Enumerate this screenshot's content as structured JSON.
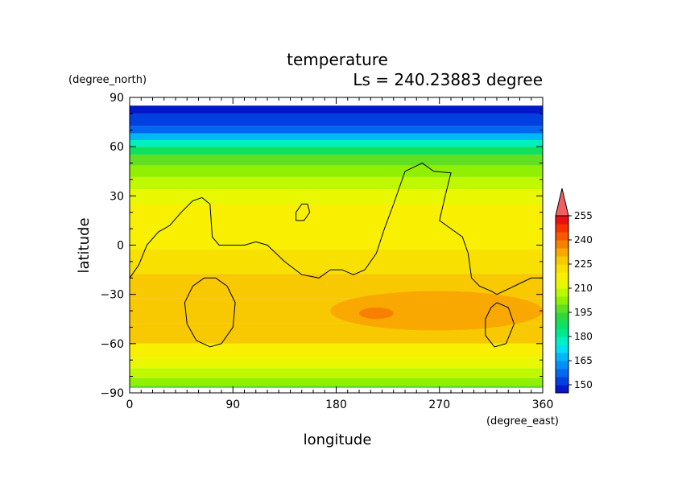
{
  "chart_data": {
    "type": "heatmap",
    "title": "temperature",
    "subtitle": "Ls = 240.23883 degree",
    "xlabel": "longitude",
    "ylabel": "latitude",
    "x_unit": "(degree_east)",
    "y_unit": "(degree_north)",
    "xlim": [
      0,
      360
    ],
    "ylim": [
      -90,
      90
    ],
    "data_lat_range": [
      -87,
      85
    ],
    "x_ticks": [
      "0",
      "90",
      "180",
      "270",
      "360"
    ],
    "y_ticks": [
      "90",
      "60",
      "30",
      "0",
      "−30",
      "−60",
      "−90"
    ],
    "x_tick_values": [
      0,
      90,
      180,
      270,
      360
    ],
    "y_tick_values": [
      90,
      60,
      30,
      0,
      -30,
      -60,
      -90
    ],
    "colorbar": {
      "levels": [
        145,
        150,
        155,
        160,
        165,
        170,
        175,
        180,
        185,
        190,
        195,
        200,
        205,
        210,
        215,
        220,
        225,
        230,
        235,
        240,
        245,
        250,
        255,
        260
      ],
      "colors": [
        "#0018c8",
        "#0040e0",
        "#0068f0",
        "#0090f8",
        "#00b8f8",
        "#00e0f0",
        "#00f0c0",
        "#00e890",
        "#10e060",
        "#30d840",
        "#60e020",
        "#90f000",
        "#c0f800",
        "#e8f800",
        "#f8f000",
        "#f8e000",
        "#f8c800",
        "#f8a800",
        "#f88000",
        "#f85800",
        "#f83000",
        "#e81010",
        "#f06060"
      ],
      "tick_labels": [
        "150",
        "165",
        "180",
        "195",
        "210",
        "225",
        "240",
        "255"
      ],
      "tick_values": [
        150,
        165,
        180,
        195,
        210,
        225,
        240,
        255
      ],
      "extend": "max"
    },
    "latitude_profile": [
      {
        "lat": 85,
        "value": 148
      },
      {
        "lat": 75,
        "value": 152
      },
      {
        "lat": 70,
        "value": 158
      },
      {
        "lat": 66,
        "value": 165
      },
      {
        "lat": 62,
        "value": 175
      },
      {
        "lat": 58,
        "value": 185
      },
      {
        "lat": 52,
        "value": 195
      },
      {
        "lat": 45,
        "value": 200
      },
      {
        "lat": 38,
        "value": 205
      },
      {
        "lat": 30,
        "value": 210
      },
      {
        "lat": 20,
        "value": 215
      },
      {
        "lat": 5,
        "value": 218
      },
      {
        "lat": -10,
        "value": 220
      },
      {
        "lat": -25,
        "value": 225
      },
      {
        "lat": -40,
        "value": 228
      },
      {
        "lat": -55,
        "value": 225
      },
      {
        "lat": -65,
        "value": 218
      },
      {
        "lat": -72,
        "value": 210
      },
      {
        "lat": -78,
        "value": 205
      },
      {
        "lat": -84,
        "value": 200
      },
      {
        "lat": -87,
        "value": 198
      }
    ],
    "warm_regions": [
      {
        "lon": [
          175,
          360
        ],
        "lat": [
          -52,
          -28
        ],
        "value": 232
      },
      {
        "lon": [
          200,
          230
        ],
        "lat": [
          -45,
          -38
        ],
        "value": 238
      }
    ],
    "contours": [
      [
        [
          0,
          -20
        ],
        [
          8,
          -12
        ],
        [
          15,
          0
        ],
        [
          25,
          8
        ],
        [
          35,
          12
        ],
        [
          45,
          20
        ],
        [
          55,
          27
        ],
        [
          63,
          29
        ],
        [
          70,
          25
        ],
        [
          72,
          5
        ],
        [
          78,
          0
        ],
        [
          90,
          0
        ],
        [
          100,
          0
        ],
        [
          110,
          2
        ],
        [
          120,
          0
        ],
        [
          135,
          -10
        ],
        [
          150,
          -18
        ],
        [
          165,
          -20
        ],
        [
          175,
          -15
        ],
        [
          185,
          -15
        ],
        [
          195,
          -18
        ],
        [
          205,
          -15
        ],
        [
          215,
          -5
        ],
        [
          222,
          10
        ],
        [
          230,
          25
        ],
        [
          240,
          45
        ],
        [
          255,
          50
        ],
        [
          265,
          45
        ],
        [
          280,
          44
        ],
        [
          275,
          30
        ],
        [
          270,
          15
        ],
        [
          280,
          10
        ],
        [
          290,
          5
        ],
        [
          295,
          -5
        ],
        [
          298,
          -20
        ],
        [
          305,
          -25
        ],
        [
          315,
          -28
        ],
        [
          320,
          -30
        ],
        [
          335,
          -25
        ],
        [
          350,
          -20
        ],
        [
          360,
          -20
        ]
      ],
      [
        [
          145,
          20
        ],
        [
          150,
          25
        ],
        [
          155,
          25
        ],
        [
          157,
          20
        ],
        [
          152,
          15
        ],
        [
          145,
          15
        ],
        [
          145,
          20
        ]
      ],
      [
        [
          75,
          -20
        ],
        [
          85,
          -25
        ],
        [
          92,
          -35
        ],
        [
          90,
          -50
        ],
        [
          80,
          -60
        ],
        [
          70,
          -62
        ],
        [
          58,
          -58
        ],
        [
          50,
          -48
        ],
        [
          48,
          -35
        ],
        [
          55,
          -25
        ],
        [
          65,
          -20
        ],
        [
          75,
          -20
        ]
      ],
      [
        [
          320,
          -35
        ],
        [
          330,
          -38
        ],
        [
          335,
          -48
        ],
        [
          328,
          -60
        ],
        [
          318,
          -62
        ],
        [
          310,
          -55
        ],
        [
          310,
          -45
        ],
        [
          315,
          -38
        ],
        [
          320,
          -35
        ]
      ]
    ]
  }
}
